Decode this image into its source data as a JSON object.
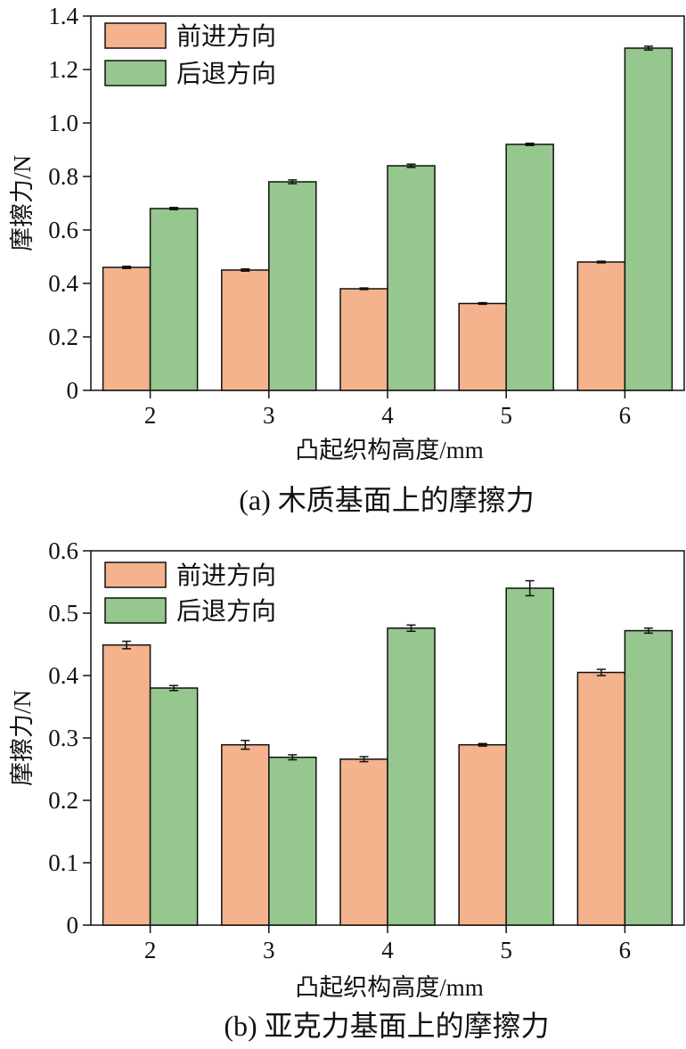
{
  "colors": {
    "forward": "#F4B38C",
    "backward": "#96C78E",
    "stroke": "#111111"
  },
  "chart_data": [
    {
      "type": "bar",
      "caption": "(a)  木质基面上的摩擦力",
      "xlabel": "凸起织构高度/mm",
      "ylabel": "摩擦力/N",
      "ylim": [
        0,
        1.4
      ],
      "yticks": [
        "0",
        "0.2",
        "0.4",
        "0.6",
        "0.8",
        "1.0",
        "1.2",
        "1.4"
      ],
      "ytick_values": [
        0,
        0.2,
        0.4,
        0.6,
        0.8,
        1.0,
        1.2,
        1.4
      ],
      "categories": [
        "2",
        "3",
        "4",
        "5",
        "6"
      ],
      "legend_position": "top-left",
      "series": [
        {
          "name": "前进方向",
          "values": [
            0.46,
            0.45,
            0.38,
            0.325,
            0.48
          ],
          "errors": [
            0.004,
            0.004,
            0.003,
            0.003,
            0.003
          ]
        },
        {
          "name": "后退方向",
          "values": [
            0.68,
            0.78,
            0.84,
            0.92,
            1.28
          ],
          "errors": [
            0.004,
            0.007,
            0.006,
            0.004,
            0.007
          ]
        }
      ]
    },
    {
      "type": "bar",
      "caption": "(b)  亚克力基面上的摩擦力",
      "xlabel": "凸起织构高度/mm",
      "ylabel": "摩擦力/N",
      "ylim": [
        0,
        0.6
      ],
      "yticks": [
        "0",
        "0.1",
        "0.2",
        "0.3",
        "0.4",
        "0.5",
        "0.6"
      ],
      "ytick_values": [
        0,
        0.1,
        0.2,
        0.3,
        0.4,
        0.5,
        0.6
      ],
      "categories": [
        "2",
        "3",
        "4",
        "5",
        "6"
      ],
      "legend_position": "top-left",
      "series": [
        {
          "name": "前进方向",
          "values": [
            0.449,
            0.289,
            0.266,
            0.289,
            0.405
          ],
          "errors": [
            0.006,
            0.007,
            0.004,
            0.002,
            0.005
          ]
        },
        {
          "name": "后退方向",
          "values": [
            0.38,
            0.269,
            0.476,
            0.54,
            0.472
          ],
          "errors": [
            0.004,
            0.004,
            0.005,
            0.012,
            0.004
          ]
        }
      ]
    }
  ]
}
